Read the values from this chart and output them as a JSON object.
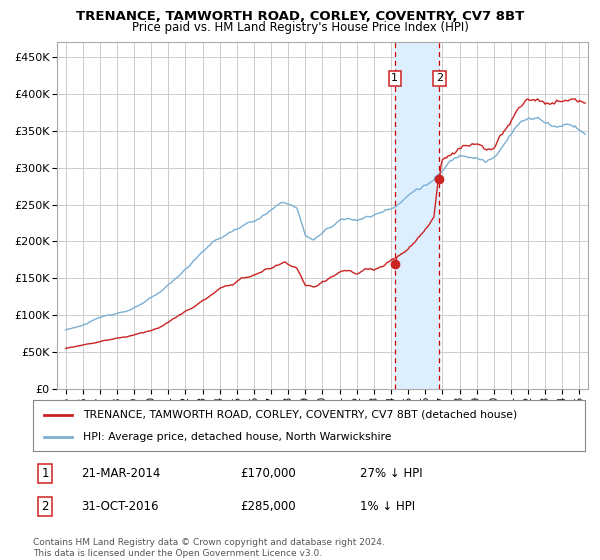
{
  "title": "TRENANCE, TAMWORTH ROAD, CORLEY, COVENTRY, CV7 8BT",
  "subtitle": "Price paid vs. HM Land Registry's House Price Index (HPI)",
  "legend_line1": "TRENANCE, TAMWORTH ROAD, CORLEY, COVENTRY, CV7 8BT (detached house)",
  "legend_line2": "HPI: Average price, detached house, North Warwickshire",
  "sale1_date": "21-MAR-2014",
  "sale1_price": 170000,
  "sale1_hpi": "27% ↓ HPI",
  "sale1_label": "1",
  "sale2_date": "31-OCT-2016",
  "sale2_price": 285000,
  "sale2_hpi": "1% ↓ HPI",
  "sale2_label": "2",
  "sale1_x": 2014.22,
  "sale2_x": 2016.83,
  "footnote1": "Contains HM Land Registry data © Crown copyright and database right 2024.",
  "footnote2": "This data is licensed under the Open Government Licence v3.0.",
  "hpi_color": "#7bafd4",
  "price_color": "#cc2222",
  "highlight_color": "#ddeeff",
  "vline_color": "#cc0000",
  "bg_color": "#ffffff",
  "grid_color": "#cccccc",
  "ylim": [
    0,
    470000
  ],
  "xlim_start": 1994.5,
  "xlim_end": 2025.5
}
